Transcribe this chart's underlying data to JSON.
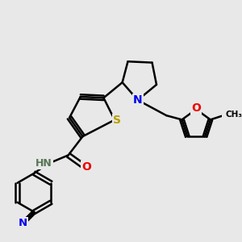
{
  "background_color": "#e8e8e8",
  "bond_color": "#000000",
  "bond_width": 1.8,
  "atom_colors": {
    "S": "#b8a000",
    "N": "#0000ee",
    "O": "#ee0000",
    "C": "#000000",
    "H": "#557755"
  },
  "font_size_atom": 9.5
}
